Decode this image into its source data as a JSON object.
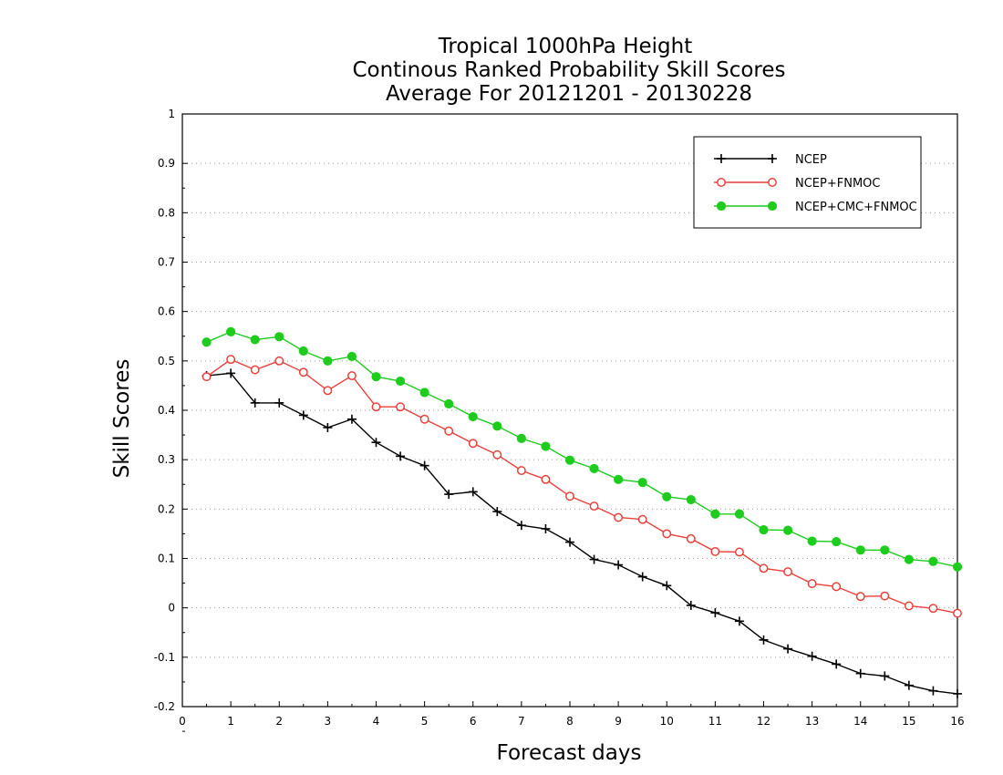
{
  "chart_data": {
    "type": "line",
    "title": [
      "Tropical 1000hPa Height",
      "Continous Ranked Probability Skill Scores",
      "Average For 20121201 - 20130228"
    ],
    "xlabel": "Forecast days",
    "ylabel": "Skill Scores",
    "xlim": [
      0,
      16
    ],
    "ylim": [
      -0.2,
      1
    ],
    "xticks": [
      0,
      1,
      2,
      3,
      4,
      5,
      6,
      7,
      8,
      9,
      10,
      11,
      12,
      13,
      14,
      15,
      16
    ],
    "yticks": [
      -0.2,
      -0.1,
      0,
      0.1,
      0.2,
      0.3,
      0.4,
      0.5,
      0.6,
      0.7,
      0.8,
      0.9,
      1
    ],
    "ytick_labels": [
      "-0.2",
      "-0.1",
      "0",
      "0.1",
      "0.2",
      "0.3",
      "0.4",
      "0.5",
      "0.6",
      "0.7",
      "0.8",
      "0.9",
      "1"
    ],
    "grid": "horizontal dotted",
    "legend_position": "top-right",
    "x": [
      0.5,
      1,
      1.5,
      2,
      2.5,
      3,
      3.5,
      4,
      4.5,
      5,
      5.5,
      6,
      6.5,
      7,
      7.5,
      8,
      8.5,
      9,
      9.5,
      10,
      10.5,
      11,
      11.5,
      12,
      12.5,
      13,
      13.5,
      14,
      14.5,
      15,
      15.5,
      16
    ],
    "series": [
      {
        "name": "NCEP",
        "color": "#000000",
        "marker": "plus",
        "values": [
          0.47,
          0.475,
          0.415,
          0.415,
          0.39,
          0.365,
          0.382,
          0.335,
          0.307,
          0.288,
          0.23,
          0.235,
          0.195,
          0.167,
          0.16,
          0.133,
          0.098,
          0.087,
          0.063,
          0.045,
          0.005,
          -0.01,
          -0.027,
          -0.065,
          -0.083,
          -0.098,
          -0.114,
          -0.133,
          -0.138,
          -0.157,
          -0.168,
          -0.174
        ]
      },
      {
        "name": "NCEP+FNMOC",
        "color": "#e8413c",
        "marker": "open-circle",
        "values": [
          0.468,
          0.503,
          0.482,
          0.5,
          0.477,
          0.44,
          0.47,
          0.407,
          0.407,
          0.382,
          0.358,
          0.333,
          0.31,
          0.278,
          0.26,
          0.226,
          0.206,
          0.183,
          0.179,
          0.15,
          0.14,
          0.114,
          0.113,
          0.08,
          0.073,
          0.049,
          0.043,
          0.023,
          0.024,
          0.004,
          -0.001,
          -0.011
        ]
      },
      {
        "name": "NCEP+CMC+FNMOC",
        "color": "#1ecc1e",
        "marker": "filled-circle",
        "values": [
          0.538,
          0.559,
          0.543,
          0.549,
          0.52,
          0.5,
          0.509,
          0.468,
          0.459,
          0.436,
          0.413,
          0.387,
          0.368,
          0.343,
          0.327,
          0.299,
          0.282,
          0.26,
          0.254,
          0.225,
          0.219,
          0.19,
          0.19,
          0.158,
          0.157,
          0.135,
          0.134,
          0.117,
          0.117,
          0.098,
          0.094,
          0.083
        ]
      }
    ]
  }
}
